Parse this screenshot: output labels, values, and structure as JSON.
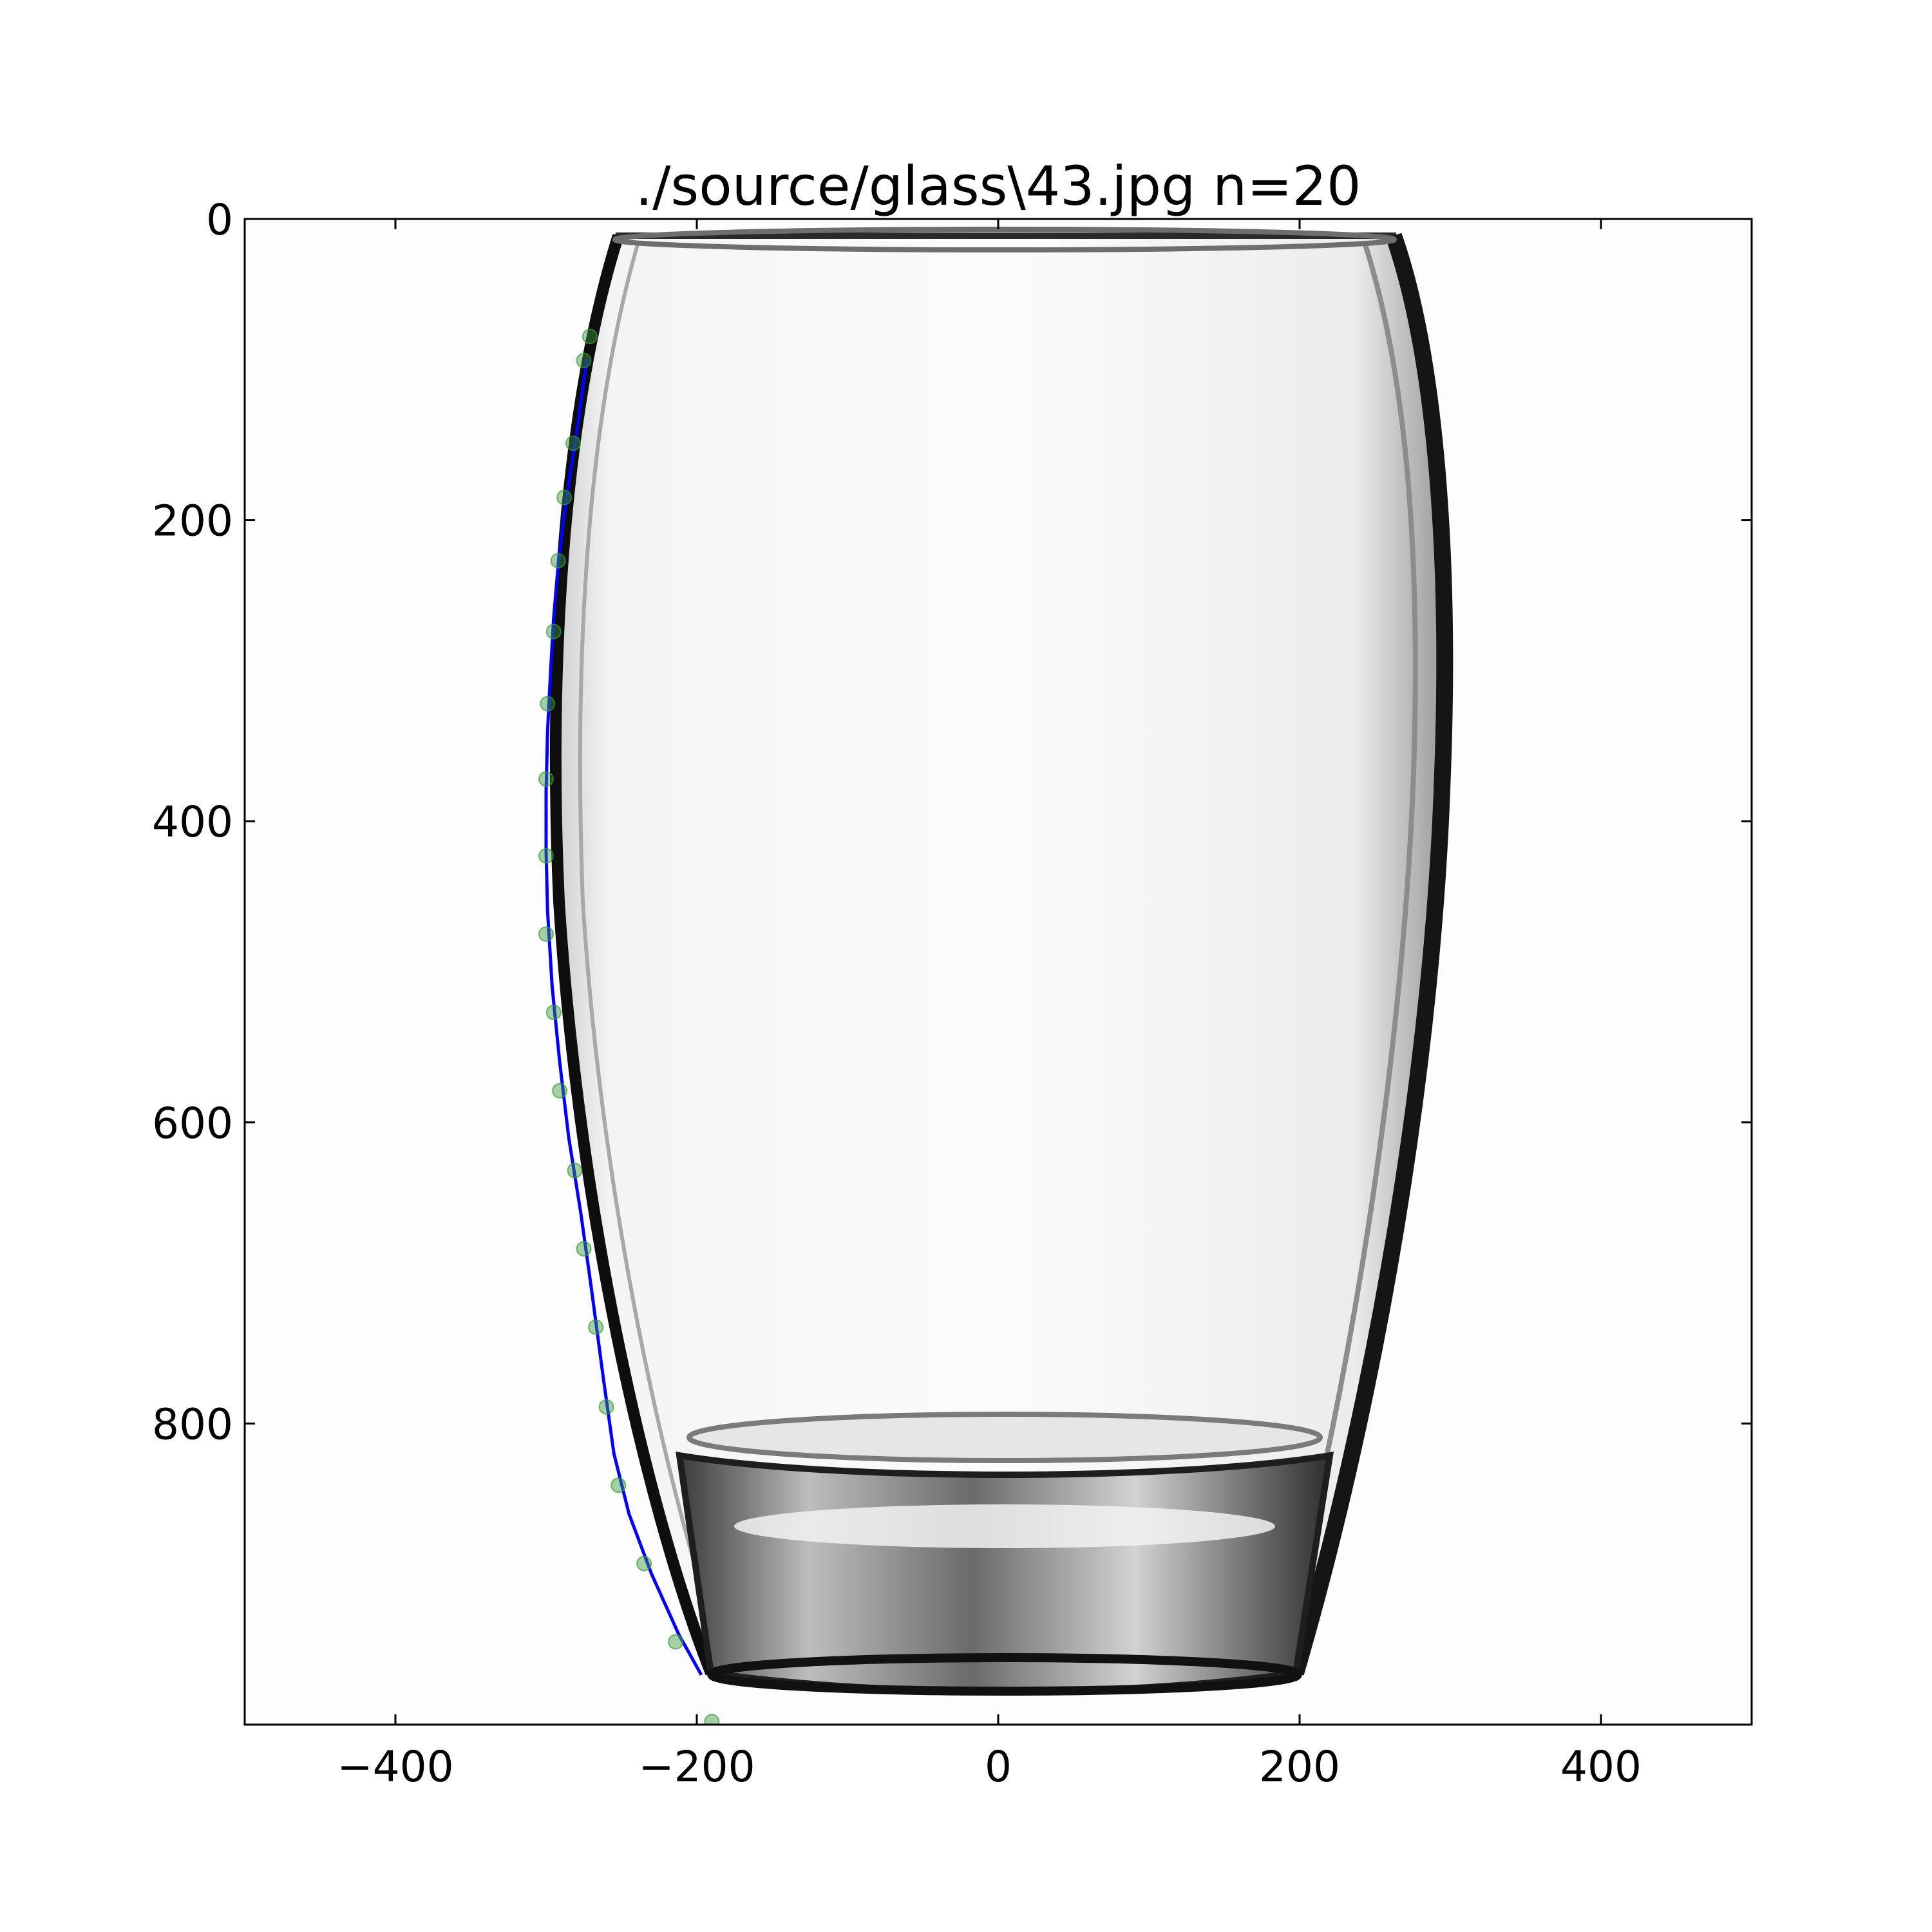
{
  "chart_data": {
    "type": "scatter",
    "title": "./source/glass\\43.jpg n=20",
    "xlabel": "",
    "ylabel": "",
    "xlim": [
      -500,
      500
    ],
    "ylim": [
      1000,
      0
    ],
    "y_inverted": true,
    "grid": false,
    "x_ticks": [
      {
        "value": -400,
        "label": "−400"
      },
      {
        "value": -200,
        "label": "−200"
      },
      {
        "value": 0,
        "label": "0"
      },
      {
        "value": 200,
        "label": "200"
      },
      {
        "value": 400,
        "label": "400"
      }
    ],
    "y_ticks": [
      {
        "value": 0,
        "label": "0"
      },
      {
        "value": 200,
        "label": "200"
      },
      {
        "value": 400,
        "label": "400"
      },
      {
        "value": 600,
        "label": "600"
      },
      {
        "value": 800,
        "label": "800"
      }
    ],
    "background_image": "glass-tumbler-photo",
    "series": [
      {
        "kind": "points",
        "color": "#3a9a3a",
        "x": [
          -271,
          -275,
          -282,
          -288,
          -292,
          -295,
          -299,
          -300,
          -300,
          -300,
          -295,
          -291,
          -281,
          -275,
          -267,
          -260,
          -252,
          -235,
          -214,
          -190
        ],
        "y": [
          78,
          94,
          149,
          185,
          227,
          274,
          322,
          372,
          423,
          475,
          527,
          579,
          632,
          684,
          736,
          789,
          841,
          893,
          945,
          998
        ]
      },
      {
        "kind": "fitted-line",
        "color": "#0000ff",
        "x": [
          -273,
          -278,
          -283,
          -288,
          -292,
          -295,
          -297,
          -299,
          -300,
          -300,
          -299,
          -296,
          -291,
          -285,
          -277,
          -270,
          -262,
          -255,
          -245,
          -230,
          -212,
          -197
        ],
        "y": [
          93,
          130,
          163,
          196,
          230,
          265,
          300,
          340,
          380,
          420,
          460,
          510,
          560,
          610,
          660,
          710,
          770,
          820,
          860,
          900,
          940,
          967
        ]
      }
    ]
  }
}
